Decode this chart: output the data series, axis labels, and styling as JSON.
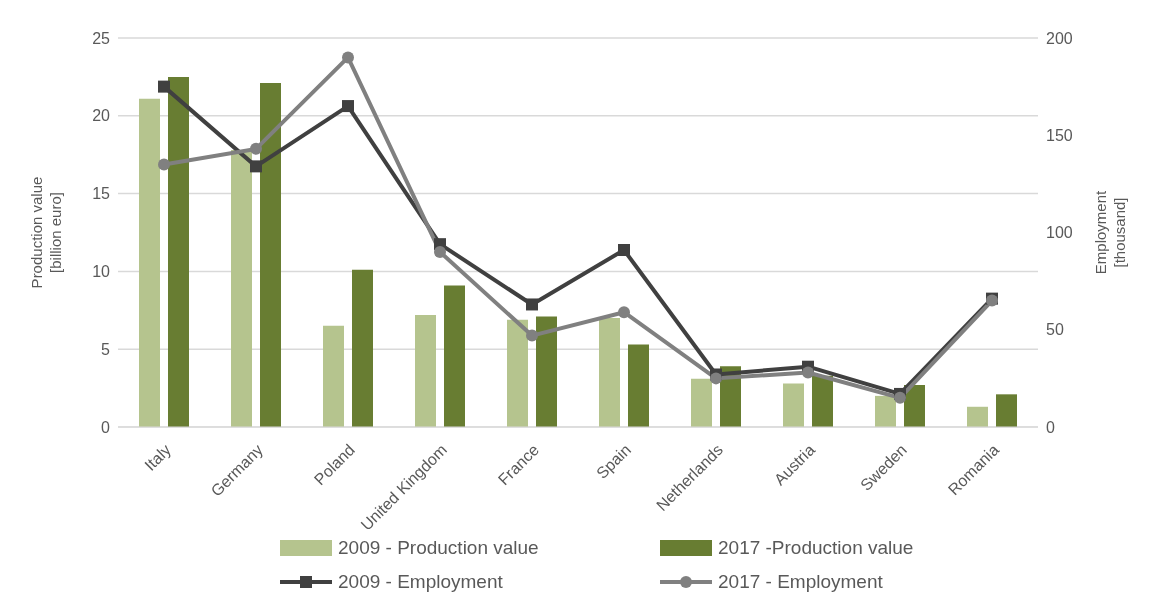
{
  "chart_data": {
    "type": "bar",
    "ylabel": "Production value [billion euro]",
    "y2label": "Employment [thousand]",
    "categories": [
      "Italy",
      "Germany",
      "Poland",
      "United Kingdom",
      "France",
      "Spain",
      "Netherlands",
      "Austria",
      "Sweden",
      "Romania"
    ],
    "series": [
      {
        "name": "2009 - Production value",
        "color": "#b5c48e",
        "values": [
          21.1,
          17.8,
          6.5,
          7.2,
          6.9,
          7.0,
          3.1,
          2.8,
          2.0,
          1.3
        ]
      },
      {
        "name": "2017 -Production value",
        "color": "#687d32",
        "values": [
          22.5,
          22.1,
          10.1,
          9.1,
          7.1,
          5.3,
          3.9,
          3.3,
          2.7,
          2.1
        ]
      },
      {
        "name": "2009 - Employment",
        "type": "line",
        "axis": "y2",
        "marker": "square",
        "color": "#404040",
        "values": [
          175,
          134,
          165,
          94,
          63,
          91,
          27,
          31,
          17,
          66
        ]
      },
      {
        "name": "2017 - Employment",
        "type": "line",
        "axis": "y2",
        "marker": "circle",
        "color": "#808080",
        "values": [
          135,
          143,
          190,
          90,
          47,
          59,
          25,
          28,
          15,
          65
        ]
      }
    ],
    "ylim": [
      0,
      25
    ],
    "yticks": [
      0,
      5,
      10,
      15,
      20,
      25
    ],
    "y2lim": [
      0,
      200
    ],
    "y2ticks": [
      0,
      50,
      100,
      150,
      200
    ],
    "grid": "y",
    "legend": "bottom"
  }
}
